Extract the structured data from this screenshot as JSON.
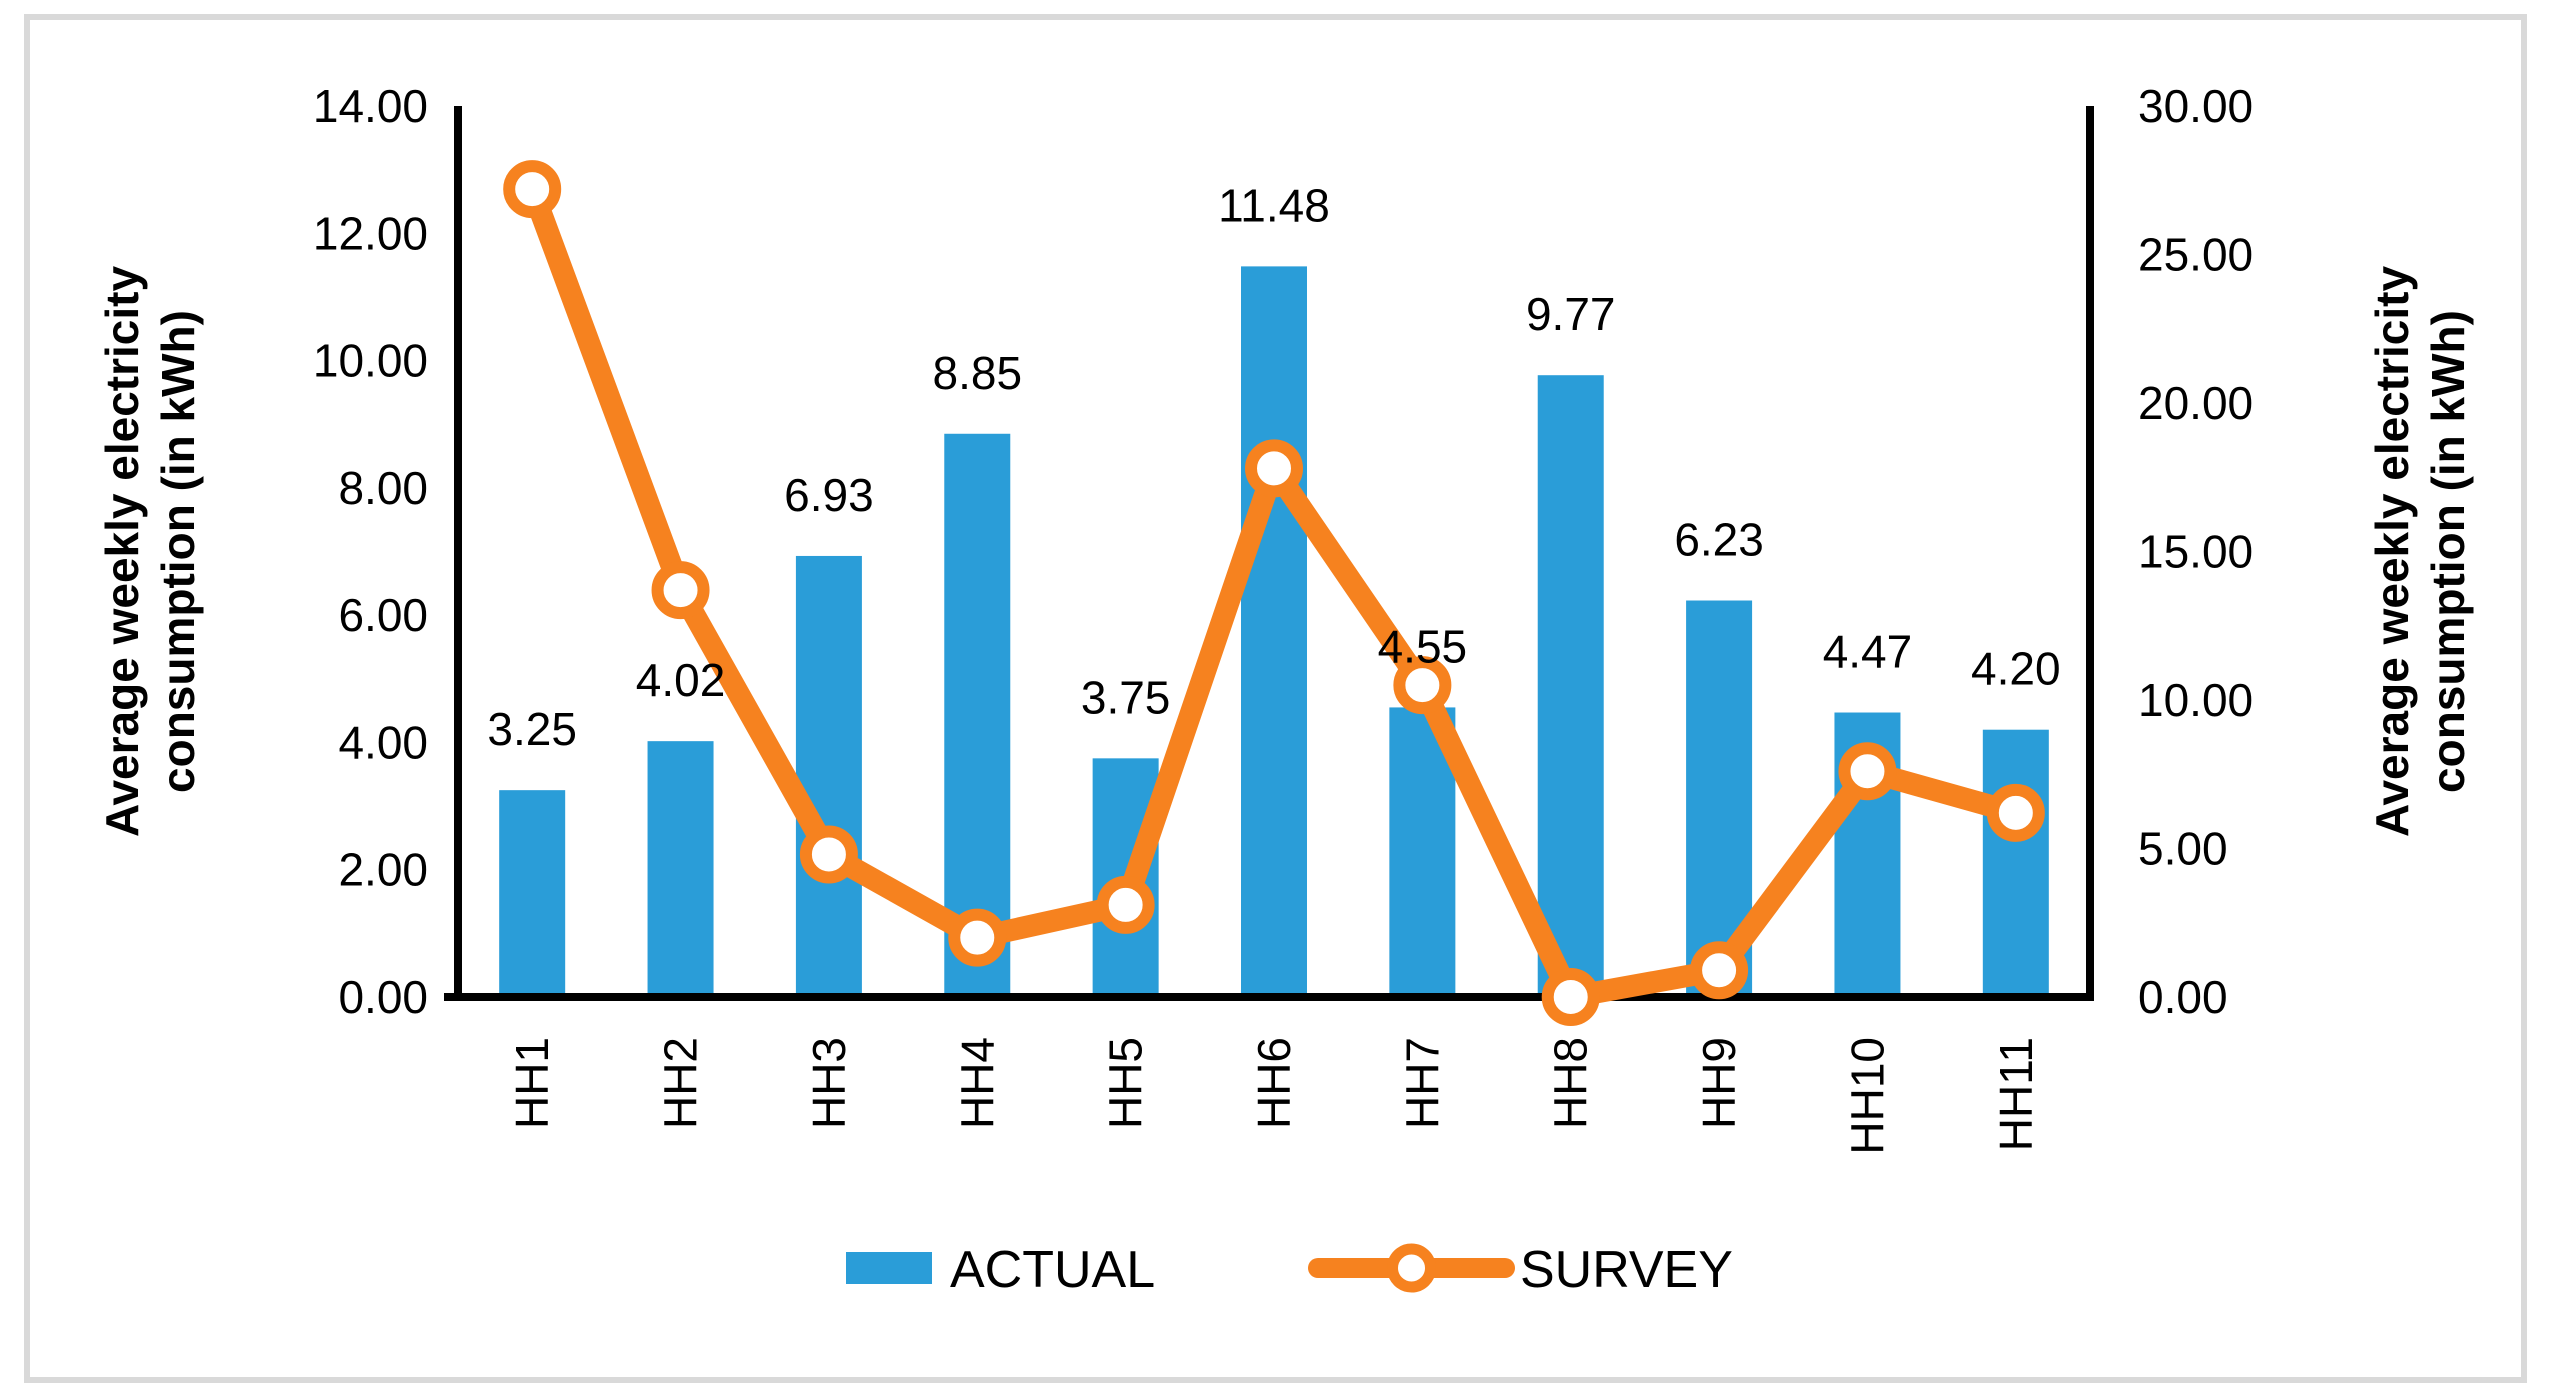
{
  "frame": {
    "background": "#FFFFFF",
    "border_color": "#D9D9D9"
  },
  "chart_data": {
    "type": "combo",
    "categories": [
      "HH1",
      "HH2",
      "HH3",
      "HH4",
      "HH5",
      "HH6",
      "HH7",
      "HH8",
      "HH9",
      "HH10",
      "HH11"
    ],
    "series": [
      {
        "name": "ACTUAL",
        "type": "bar",
        "axis": "left",
        "color": "#2A9DD8",
        "values": [
          3.25,
          4.02,
          6.93,
          8.85,
          3.75,
          11.48,
          4.55,
          9.77,
          6.23,
          4.47,
          4.2
        ],
        "labels": [
          "3.25",
          "4.02",
          "6.93",
          "8.85",
          "3.75",
          "11.48",
          "4.55",
          "9.77",
          "6.23",
          "4.47",
          "4.20"
        ]
      },
      {
        "name": "SURVEY",
        "type": "line",
        "axis": "right",
        "color": "#F6821F",
        "marker": "open-circle",
        "values": [
          27.2,
          13.7,
          4.8,
          2.0,
          3.1,
          17.8,
          10.5,
          0.0,
          0.9,
          7.6,
          6.2
        ]
      }
    ],
    "left_axis": {
      "title_lines": [
        "Average weekly electricity",
        "consumption (in kWh)"
      ],
      "title_color": "#000000",
      "tick_color": "#000000",
      "min": 0,
      "max": 14,
      "step": 2,
      "tick_labels": [
        "0.00",
        "2.00",
        "4.00",
        "6.00",
        "8.00",
        "10.00",
        "12.00",
        "14.00"
      ]
    },
    "right_axis": {
      "title_lines": [
        "Average weekly electricity",
        "consumption (in kWh)"
      ],
      "title_color": "#8C8C8C",
      "tick_color": "#000000",
      "min": 0,
      "max": 30,
      "step": 5,
      "tick_labels": [
        "0.00",
        "5.00",
        "10.00",
        "15.00",
        "20.00",
        "25.00",
        "30.00"
      ]
    },
    "legend": {
      "position": "bottom",
      "items": [
        {
          "label": "ACTUAL",
          "swatch": "bar"
        },
        {
          "label": "SURVEY",
          "swatch": "line-marker"
        }
      ]
    },
    "grid": false,
    "data_labels": {
      "series": "ACTUAL",
      "position": "outside-end",
      "format": "0.00"
    }
  }
}
